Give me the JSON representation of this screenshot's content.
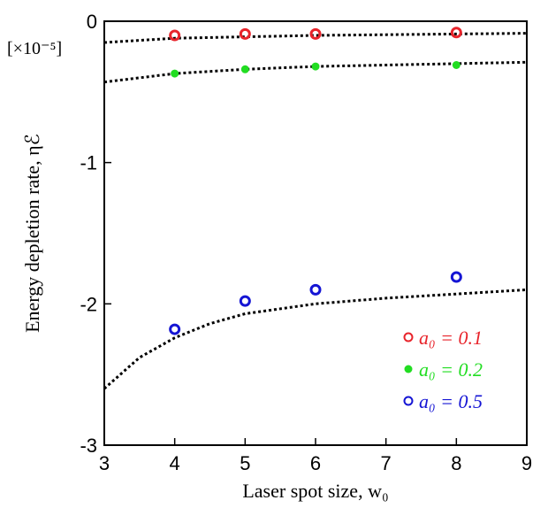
{
  "chart_data": {
    "type": "scatter",
    "xlabel": "Laser spot size, w₀",
    "ylabel": "Energy depletion rate, ηℰ",
    "scale_note": "[×10⁻⁵]",
    "xlim": [
      3,
      9
    ],
    "ylim": [
      -3,
      0
    ],
    "x_ticks": [
      3,
      4,
      5,
      6,
      7,
      8,
      9
    ],
    "y_ticks": [
      0,
      -1,
      -2,
      -3
    ],
    "x_tick_labels": [
      "3",
      "4",
      "5",
      "6",
      "7",
      "8",
      "9"
    ],
    "y_tick_labels": [
      "0",
      "-1",
      "-2",
      "-3"
    ],
    "legend_position": "bottom-right",
    "grid": false,
    "series": [
      {
        "name": "a₀ = 0.1",
        "color": "#e8242b",
        "marker": "open-circle",
        "x": [
          4,
          5,
          6,
          8
        ],
        "y": [
          -0.1,
          -0.09,
          -0.09,
          -0.08
        ],
        "fit": [
          [
            3,
            -0.15
          ],
          [
            4,
            -0.12
          ],
          [
            5,
            -0.11
          ],
          [
            6,
            -0.1
          ],
          [
            7,
            -0.095
          ],
          [
            8,
            -0.09
          ],
          [
            9,
            -0.085
          ]
        ]
      },
      {
        "name": "a₀ = 0.2",
        "color": "#22dd22",
        "marker": "filled-circle",
        "x": [
          4,
          5,
          6,
          8
        ],
        "y": [
          -0.37,
          -0.34,
          -0.32,
          -0.31
        ],
        "fit": [
          [
            3,
            -0.43
          ],
          [
            4,
            -0.37
          ],
          [
            5,
            -0.34
          ],
          [
            6,
            -0.32
          ],
          [
            7,
            -0.31
          ],
          [
            8,
            -0.3
          ],
          [
            9,
            -0.29
          ]
        ]
      },
      {
        "name": "a₀ = 0.5",
        "color": "#1515d4",
        "marker": "open-circle",
        "x": [
          4,
          5,
          6,
          8
        ],
        "y": [
          -2.18,
          -1.98,
          -1.9,
          -1.81
        ],
        "fit": [
          [
            3,
            -2.6
          ],
          [
            3.5,
            -2.38
          ],
          [
            4,
            -2.24
          ],
          [
            4.5,
            -2.14
          ],
          [
            5,
            -2.07
          ],
          [
            6,
            -2.0
          ],
          [
            7,
            -1.96
          ],
          [
            8,
            -1.93
          ],
          [
            9,
            -1.9
          ]
        ]
      }
    ]
  }
}
